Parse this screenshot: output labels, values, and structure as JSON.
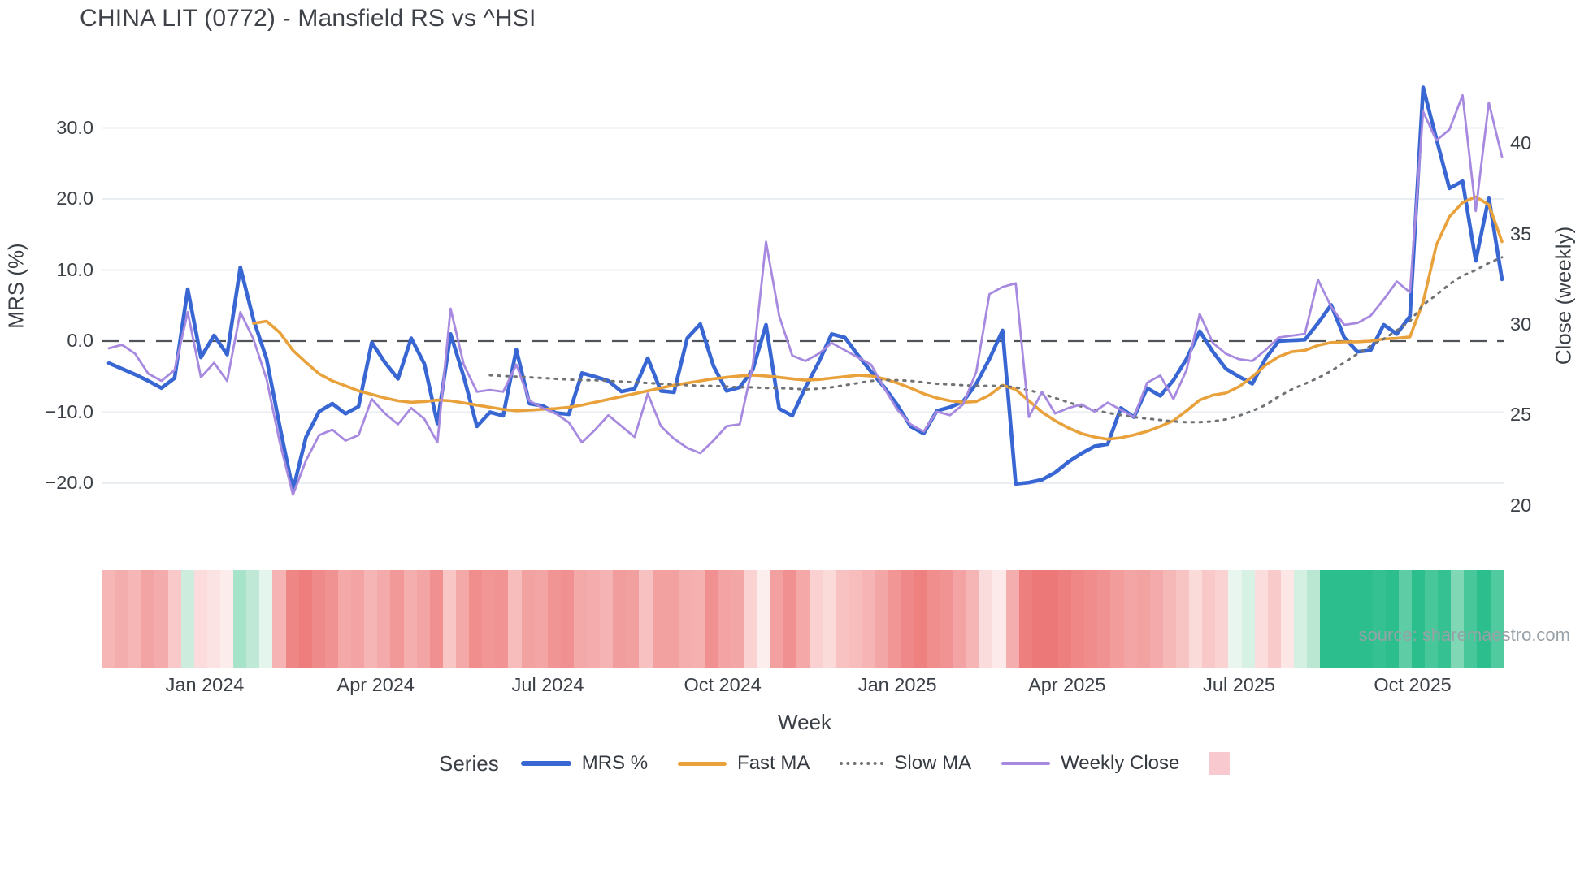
{
  "title": "CHINA LIT (0772) - Mansfield RS vs ^HSI",
  "source": "source: sharemaestro.com",
  "legend": {
    "title": "Series",
    "items": [
      {
        "label": "MRS %",
        "color": "#3866d2",
        "style": "line-thick"
      },
      {
        "label": "Fast MA",
        "color": "#e9a13b",
        "style": "line"
      },
      {
        "label": "Slow MA",
        "color": "#6f7276",
        "style": "dotted"
      },
      {
        "label": "Weekly Close",
        "color": "#a78ae0",
        "style": "line-thin"
      },
      {
        "label": "",
        "color": "#f8c9ce",
        "style": "square"
      }
    ]
  },
  "chart_data": {
    "type": "line",
    "title": "CHINA LIT (0772) - Mansfield RS vs ^HSI",
    "xlabel": "Week",
    "ylabel_left": "MRS (%)",
    "ylabel_right": "Close (weekly)",
    "grid": true,
    "weeks_total": 107,
    "x_ticks": [
      {
        "label": "Jan 2024",
        "week": 7.3
      },
      {
        "label": "Apr 2024",
        "week": 20.3
      },
      {
        "label": "Jul 2024",
        "week": 33.4
      },
      {
        "label": "Oct 2024",
        "week": 46.7
      },
      {
        "label": "Jan 2025",
        "week": 60.0
      },
      {
        "label": "Apr 2025",
        "week": 72.9
      },
      {
        "label": "Jul 2025",
        "week": 86.0
      },
      {
        "label": "Oct 2025",
        "week": 99.2
      }
    ],
    "y_left": {
      "ticks": [
        30,
        20,
        10,
        0,
        -10,
        -20
      ],
      "labels": [
        "30.0",
        "20.0",
        "10.0",
        "0.0",
        "−10.0",
        "−20.0"
      ],
      "range_note": "MRS percent, zero line dashed"
    },
    "y_right": {
      "ticks": [
        40,
        35,
        30,
        25,
        20
      ],
      "labels": [
        "40",
        "35",
        "30",
        "25",
        "20"
      ]
    },
    "zero_line_left": 0,
    "series": [
      {
        "name": "MRS %",
        "axis": "left",
        "color": "#3866d2",
        "width": 4.6,
        "dash": null,
        "values": [
          -3.1,
          -3.9,
          -4.7,
          -5.6,
          -6.6,
          -5.2,
          7.3,
          -2.3,
          0.8,
          -1.9,
          10.4,
          3.0,
          -2.5,
          -12.0,
          -21.0,
          -13.5,
          -9.9,
          -8.8,
          -10.2,
          -9.2,
          -0.2,
          -3.0,
          -5.3,
          0.4,
          -3.2,
          -11.6,
          1.0,
          -5.0,
          -12.0,
          -10.0,
          -10.5,
          -1.2,
          -8.8,
          -9.1,
          -10.1,
          -10.3,
          -4.5,
          -5.0,
          -5.6,
          -7.1,
          -6.7,
          -2.4,
          -7.0,
          -7.2,
          0.4,
          2.4,
          -3.5,
          -7.0,
          -6.5,
          -4.0,
          2.3,
          -9.5,
          -10.5,
          -6.5,
          -3.0,
          1.0,
          0.5,
          -2.0,
          -4.3,
          -6.5,
          -9.0,
          -12.0,
          -13.0,
          -9.8,
          -9.3,
          -8.5,
          -6.0,
          -2.5,
          1.5,
          -20.1,
          -19.9,
          -19.5,
          -18.5,
          -17.0,
          -15.8,
          -14.8,
          -14.5,
          -9.4,
          -10.7,
          -6.6,
          -7.7,
          -5.5,
          -2.5,
          1.4,
          -1.5,
          -3.9,
          -5.0,
          -6.0,
          -2.5,
          0.0,
          0.1,
          0.2,
          2.5,
          5.1,
          0.5,
          -1.5,
          -1.3,
          2.3,
          1.0,
          3.5,
          35.7,
          28.5,
          21.5,
          22.5,
          11.3,
          20.2,
          8.7
        ]
      },
      {
        "name": "Fast MA",
        "axis": "left",
        "color": "#e9a13b",
        "width": 3.6,
        "dash": null,
        "values": [
          null,
          null,
          null,
          null,
          null,
          null,
          null,
          null,
          null,
          null,
          null,
          2.5,
          2.8,
          1.2,
          -1.3,
          -3.0,
          -4.6,
          -5.6,
          -6.3,
          -7.0,
          -7.5,
          -8.0,
          -8.4,
          -8.6,
          -8.5,
          -8.3,
          -8.4,
          -8.7,
          -9.0,
          -9.3,
          -9.6,
          -9.8,
          -9.7,
          -9.6,
          -9.5,
          -9.3,
          -9.0,
          -8.6,
          -8.2,
          -7.8,
          -7.4,
          -7.0,
          -6.6,
          -6.2,
          -5.9,
          -5.6,
          -5.3,
          -5.1,
          -4.9,
          -4.8,
          -4.9,
          -5.1,
          -5.3,
          -5.5,
          -5.4,
          -5.2,
          -5.0,
          -4.8,
          -4.9,
          -5.3,
          -5.9,
          -6.6,
          -7.4,
          -8.0,
          -8.4,
          -8.6,
          -8.5,
          -7.6,
          -6.2,
          -6.8,
          -8.4,
          -10.0,
          -11.2,
          -12.2,
          -13.0,
          -13.5,
          -13.8,
          -13.6,
          -13.2,
          -12.7,
          -12.0,
          -11.2,
          -9.8,
          -8.3,
          -7.6,
          -7.3,
          -6.4,
          -5.0,
          -3.4,
          -2.2,
          -1.5,
          -1.3,
          -0.6,
          -0.2,
          -0.1,
          -0.1,
          0.0,
          0.3,
          0.4,
          0.6,
          5.5,
          13.5,
          17.5,
          19.5,
          20.3,
          19.2,
          14.0
        ]
      },
      {
        "name": "Slow MA",
        "axis": "left",
        "color": "#6f7276",
        "width": 3.0,
        "dash": "2.5 7.5",
        "values": [
          null,
          null,
          null,
          null,
          null,
          null,
          null,
          null,
          null,
          null,
          null,
          null,
          null,
          null,
          null,
          null,
          null,
          null,
          null,
          null,
          null,
          null,
          null,
          null,
          null,
          null,
          null,
          null,
          null,
          -4.8,
          -4.9,
          -5.0,
          -5.1,
          -5.2,
          -5.3,
          -5.4,
          -5.5,
          -5.5,
          -5.6,
          -5.7,
          -5.8,
          -5.9,
          -6.0,
          -6.1,
          -6.2,
          -6.3,
          -6.3,
          -6.4,
          -6.5,
          -6.5,
          -6.6,
          -6.6,
          -6.7,
          -6.8,
          -6.7,
          -6.5,
          -6.2,
          -5.9,
          -5.6,
          -5.5,
          -5.5,
          -5.6,
          -5.8,
          -6.0,
          -6.1,
          -6.2,
          -6.3,
          -6.3,
          -6.3,
          -6.5,
          -6.9,
          -7.4,
          -8.0,
          -8.6,
          -9.2,
          -9.7,
          -10.1,
          -10.4,
          -10.7,
          -10.9,
          -11.1,
          -11.3,
          -11.4,
          -11.4,
          -11.3,
          -11.0,
          -10.5,
          -9.8,
          -9.0,
          -7.8,
          -6.8,
          -6.0,
          -5.2,
          -4.2,
          -3.0,
          -1.8,
          -0.7,
          0.3,
          1.5,
          2.8,
          5.1,
          6.5,
          8.0,
          9.2,
          10.0,
          11.0,
          11.8
        ]
      },
      {
        "name": "Weekly Close",
        "axis": "right",
        "color": "#a78ae0",
        "width": 2.8,
        "dash": null,
        "values": [
          28.7,
          28.9,
          28.4,
          27.3,
          26.9,
          27.5,
          30.7,
          27.1,
          27.9,
          26.9,
          30.7,
          29.2,
          27.0,
          23.5,
          20.6,
          22.5,
          23.9,
          24.2,
          23.6,
          23.9,
          25.9,
          25.1,
          24.5,
          25.4,
          24.8,
          23.5,
          30.9,
          27.8,
          26.3,
          26.4,
          26.3,
          27.8,
          25.8,
          25.4,
          25.1,
          24.6,
          23.5,
          24.2,
          25.0,
          24.4,
          23.8,
          26.2,
          24.4,
          23.7,
          23.2,
          22.9,
          23.6,
          24.4,
          24.5,
          27.8,
          34.6,
          30.5,
          28.3,
          28.0,
          28.4,
          29.0,
          28.6,
          28.2,
          27.8,
          26.5,
          25.3,
          24.5,
          24.1,
          25.2,
          25.0,
          25.6,
          27.4,
          31.7,
          32.1,
          32.3,
          24.9,
          26.3,
          25.1,
          25.4,
          25.6,
          25.2,
          25.7,
          25.3,
          24.9,
          26.8,
          27.2,
          25.9,
          27.5,
          30.6,
          29.0,
          28.4,
          28.1,
          28.0,
          28.6,
          29.3,
          29.4,
          29.5,
          32.5,
          31.0,
          30.0,
          30.1,
          30.5,
          31.4,
          32.4,
          31.8,
          41.8,
          40.2,
          40.8,
          42.7,
          36.3,
          42.3,
          39.3
        ]
      }
    ],
    "heatmap_strip": {
      "colors": [
        "#f6b6b6",
        "#f4adad",
        "#f6b6b6",
        "#f2a3a3",
        "#f4abab",
        "#f9c8c8",
        "#cdecdd",
        "#fbdbdb",
        "#fbe3e3",
        "#fcecec",
        "#a6e3c8",
        "#bfe9d6",
        "#e3f5ec",
        "#f6b3b3",
        "#ef8686",
        "#ee7e7e",
        "#ef8a8a",
        "#f19292",
        "#f4a8a8",
        "#f3a3a3",
        "#f6b5b5",
        "#f4aaaa",
        "#f19898",
        "#f5aeae",
        "#f3a5a5",
        "#f09090",
        "#f9c6c6",
        "#f4a9a9",
        "#f08e8e",
        "#f19595",
        "#f19393",
        "#f7bcbc",
        "#f3a2a2",
        "#f3a4a4",
        "#f19494",
        "#f19090",
        "#f4a9a9",
        "#f4acac",
        "#f6b3b3",
        "#f29d9d",
        "#f29f9f",
        "#f8c1c1",
        "#f2a0a0",
        "#f2a0a0",
        "#f5aeae",
        "#f5b0b0",
        "#f09090",
        "#f3a3a3",
        "#f3a6a6",
        "#fad2d2",
        "#fdeeee",
        "#f2a0a0",
        "#f09090",
        "#f4a8a8",
        "#fad0d0",
        "#fbdada",
        "#f8c2c2",
        "#f7bcbc",
        "#f6b4b4",
        "#f3a6a6",
        "#f19595",
        "#ef8888",
        "#ee8080",
        "#f08d8d",
        "#f19393",
        "#f3a3a3",
        "#f6b5b5",
        "#fbdcdc",
        "#fceaea",
        "#f5aeae",
        "#ee7f7f",
        "#ed7878",
        "#ed7878",
        "#ee7f7f",
        "#ef8787",
        "#f08c8c",
        "#f19292",
        "#f29c9c",
        "#f3a4a4",
        "#f3a2a2",
        "#f4aaaa",
        "#f6b7b7",
        "#f8c3c3",
        "#fbdada",
        "#f9c9c9",
        "#fad2d2",
        "#e8f6ef",
        "#d8f1e5",
        "#fbdddd",
        "#f9caca",
        "#fce6e6",
        "#d4f0e3",
        "#b9e7d1",
        "#2cbe8c",
        "#2cbe8c",
        "#2cbe8c",
        "#2cbe8c",
        "#35c191",
        "#2cbe8c",
        "#5ecda5",
        "#2cbe8c",
        "#48c79a",
        "#35c191",
        "#7fd7b5",
        "#48c79a",
        "#2cbe8c",
        "#52ca9f"
      ]
    },
    "colors": {
      "grid": "#eaedf2",
      "zero_line": "#4f5359",
      "text": "#3b4047",
      "source_text": "#98a1a8"
    }
  }
}
